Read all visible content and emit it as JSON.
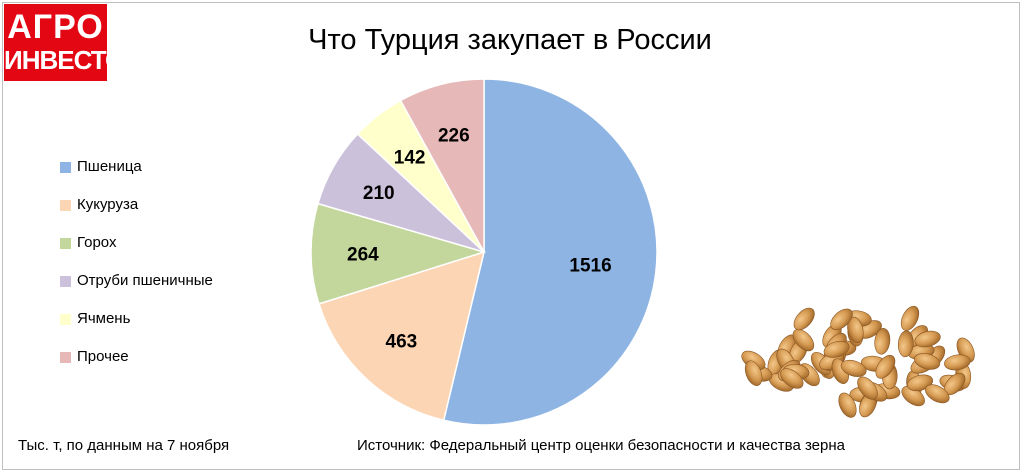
{
  "logo": {
    "line1": "АГРО",
    "line2": "ИНВЕСТОР"
  },
  "chart_data": {
    "type": "pie",
    "title": "Что Турция закупает в России",
    "categories": [
      "Пшеница",
      "Кукуруза",
      "Горох",
      "Отруби пшеничные",
      "Ячмень",
      "Прочее"
    ],
    "values": [
      1516,
      463,
      264,
      210,
      142,
      226
    ],
    "colors": [
      "#8eb4e3",
      "#fcd5b5",
      "#c3d69b",
      "#ccc1da",
      "#ffffcc",
      "#e6b9b8"
    ],
    "legend_position": "left",
    "data_labels": true
  },
  "footer": {
    "note": "Тыс. т, по данным на 7 ноября",
    "source": "Источник: Федеральный центр оценки безопасности и качества зерна"
  },
  "image": {
    "icon": "wheat-grains-icon"
  }
}
